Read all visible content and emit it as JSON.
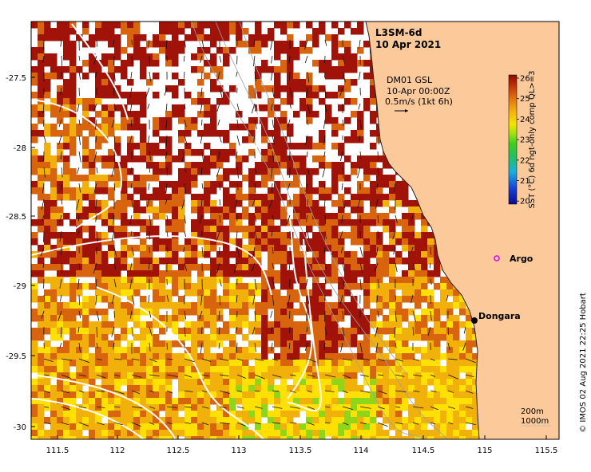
{
  "product": "L3SM-6d",
  "date": "10 Apr 2021",
  "current_label_1": "DM01 GSL",
  "current_label_2": "10-Apr 00:00Z",
  "current_label_3": "0.5m/s (1kt 6h)",
  "colorbar": {
    "label": "SST (°C) 6d ngt-only comp QL>=3",
    "ticks": [
      "26",
      "25",
      "24",
      "23",
      "22",
      "21",
      "20"
    ]
  },
  "x_ticks": [
    "111.5",
    "112",
    "112.5",
    "113",
    "113.5",
    "114",
    "114.5",
    "115",
    "115.5"
  ],
  "y_ticks": [
    "-27.5",
    "-28",
    "-28.5",
    "-29",
    "-29.5",
    "-30"
  ],
  "places": {
    "argo": "Argo",
    "dongara": "Dongara"
  },
  "depth_labels": [
    "200m",
    "1000m"
  ],
  "credit": "© IMOS 02 Aug 2021 22:25 Hobart",
  "colors": {
    "land": "#fbc99a",
    "sst_hot": "#a11208",
    "sst_warm": "#d8650e",
    "sst_mid": "#f1b00a",
    "sst_cool": "#ffe000",
    "sst_green": "#8fd61a",
    "argo": "#e020e0"
  }
}
